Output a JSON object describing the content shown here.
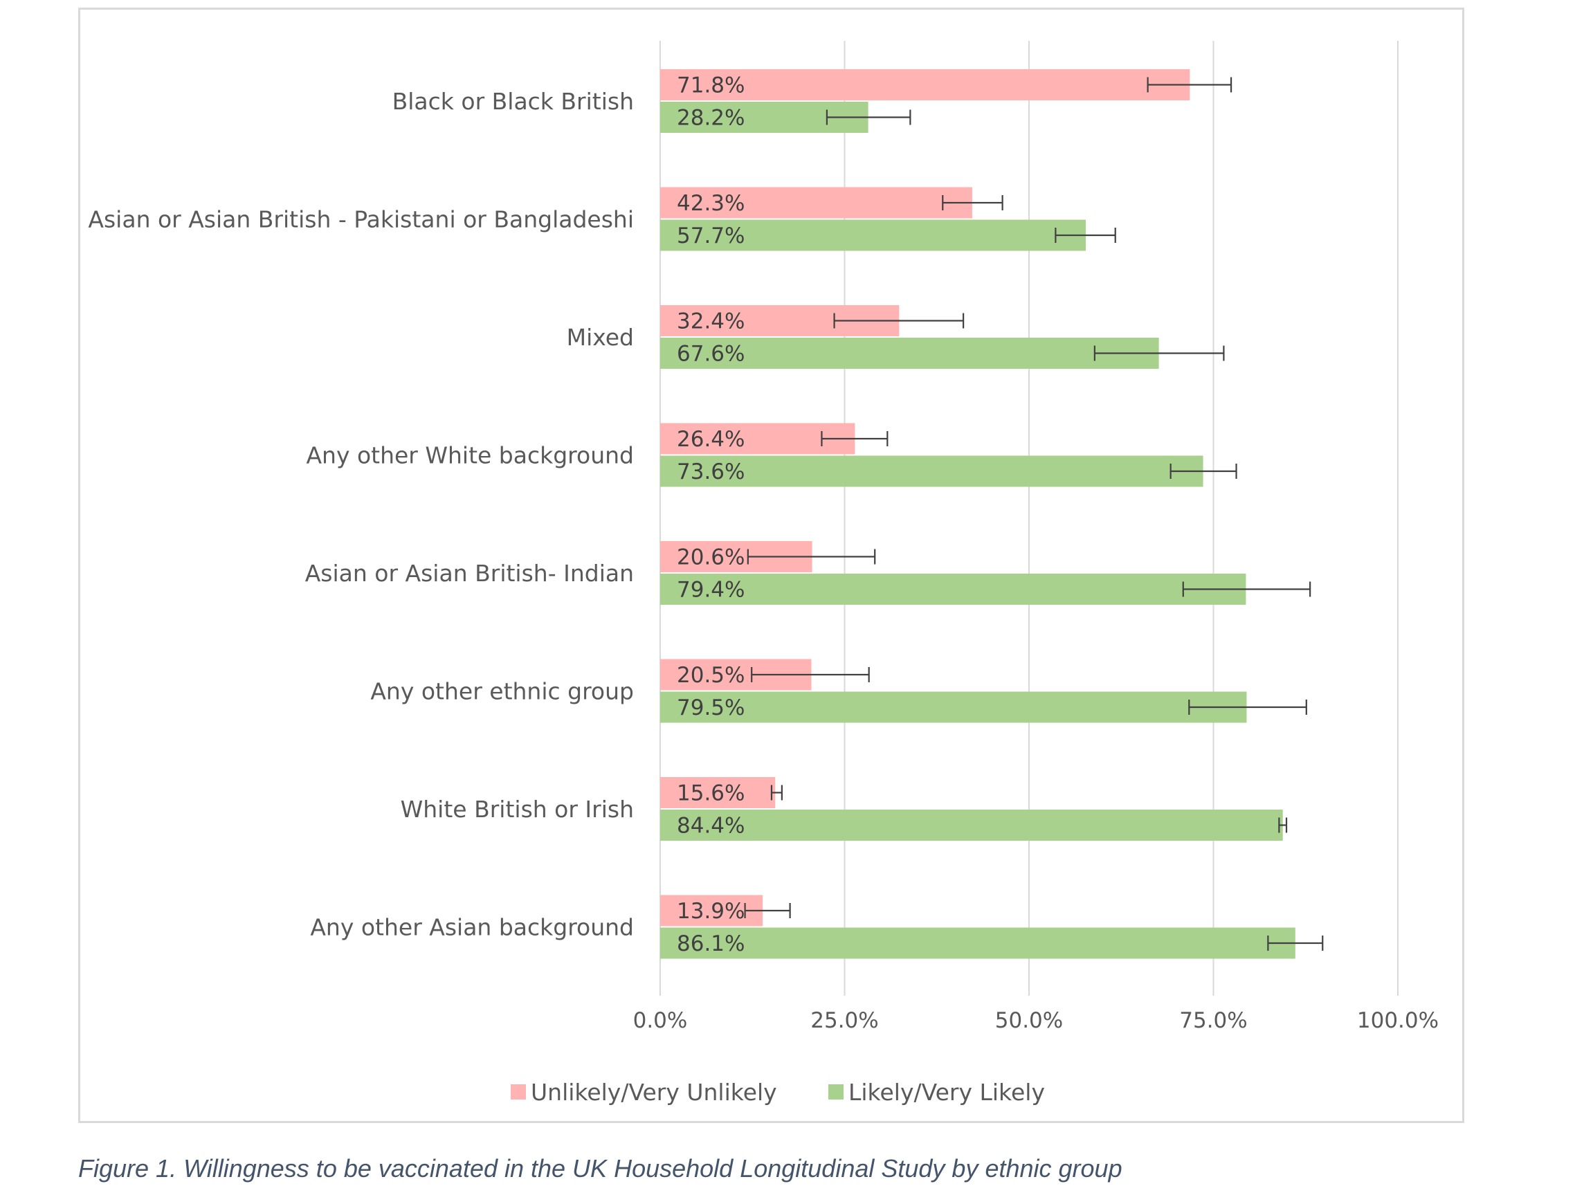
{
  "caption": "Figure 1. Willingness to be vaccinated in the UK Household Longitudinal Study by ethnic group",
  "chart_data": {
    "type": "bar",
    "orientation": "horizontal",
    "title": "",
    "xlabel": "",
    "ylabel": "",
    "xlim": [
      0,
      100
    ],
    "xticks": [
      "0.0%",
      "25.0%",
      "50.0%",
      "75.0%",
      "100.0%"
    ],
    "xtick_values": [
      0,
      25,
      50,
      75,
      100
    ],
    "grid": "vertical",
    "legend_position": "bottom",
    "categories": [
      "Black or Black British",
      "Asian or Asian British - Pakistani or Bangladeshi",
      "Mixed",
      "Any other White background",
      "Asian or Asian British- Indian",
      "Any other ethnic group",
      "White British or Irish",
      "Any other Asian background"
    ],
    "series": [
      {
        "name": "Unlikely/Very Unlikely",
        "color": "#ffb3b3",
        "values": [
          71.8,
          42.3,
          32.4,
          26.4,
          20.6,
          20.5,
          15.6,
          13.9
        ],
        "labels": [
          "71.8%",
          "42.3%",
          "32.4%",
          "26.4%",
          "20.6%",
          "20.5%",
          "15.6%",
          "13.9%"
        ],
        "error_low": [
          66.1,
          38.3,
          23.6,
          21.9,
          11.9,
          12.4,
          15.1,
          11.5
        ],
        "error_high": [
          77.4,
          46.4,
          41.1,
          30.8,
          29.1,
          28.3,
          16.5,
          17.6
        ]
      },
      {
        "name": "Likely/Very Likely",
        "color": "#a9d18e",
        "values": [
          28.2,
          57.7,
          67.6,
          73.6,
          79.4,
          79.5,
          84.4,
          86.1
        ],
        "labels": [
          "28.2%",
          "57.7%",
          "67.6%",
          "73.6%",
          "79.4%",
          "79.5%",
          "84.4%",
          "86.1%"
        ],
        "error_low": [
          22.6,
          53.6,
          58.9,
          69.2,
          70.9,
          71.7,
          83.9,
          82.4
        ],
        "error_high": [
          33.9,
          61.7,
          76.4,
          78.1,
          88.1,
          87.6,
          84.9,
          89.8
        ]
      }
    ]
  }
}
